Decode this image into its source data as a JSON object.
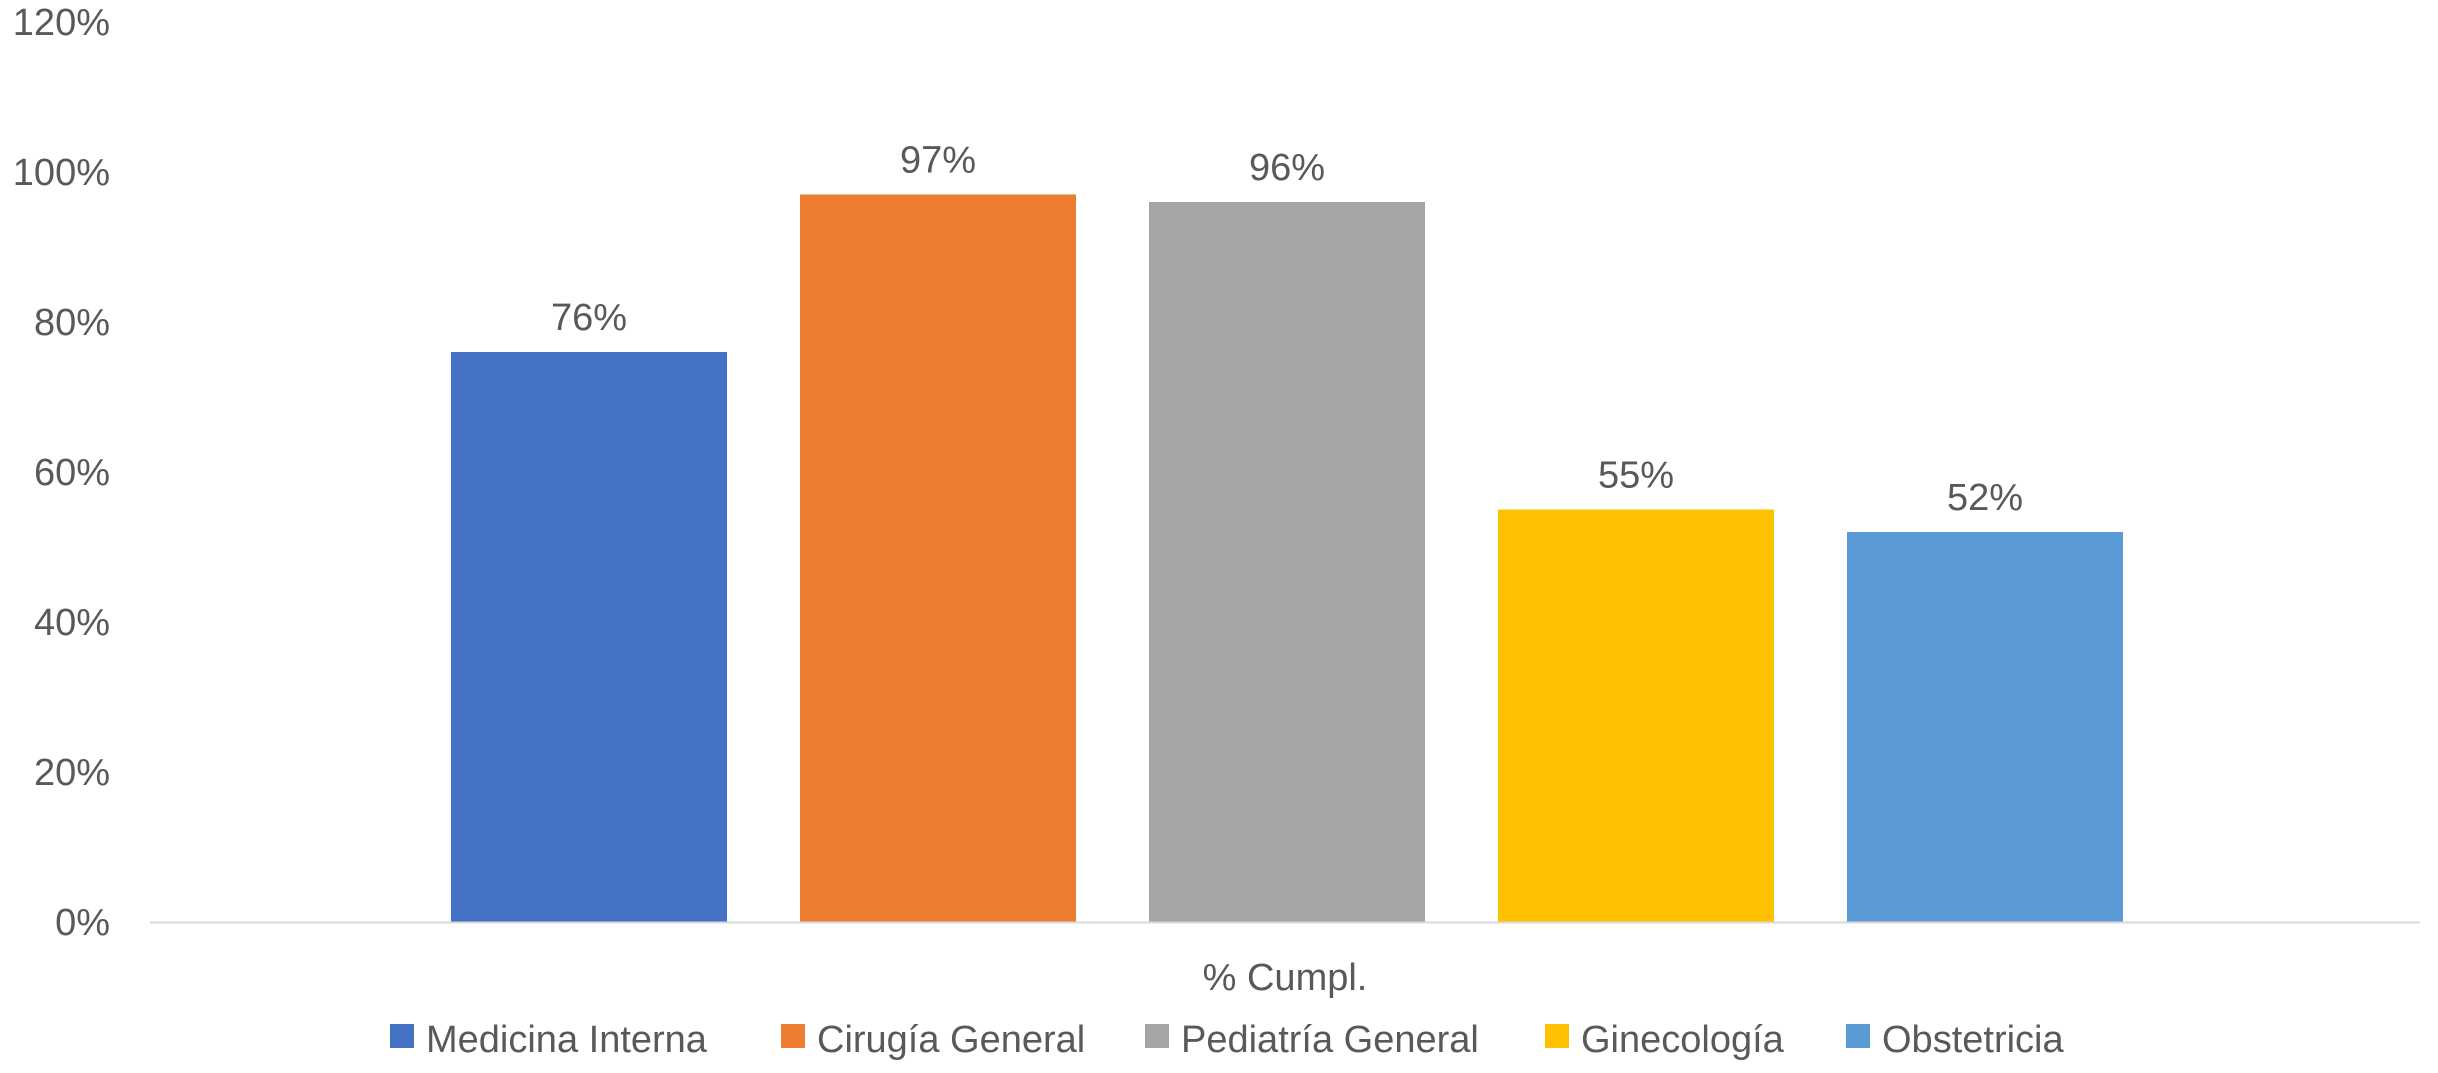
{
  "chart_data": {
    "type": "bar",
    "categories": [
      "% Cumpl."
    ],
    "series": [
      {
        "name": "Medicina Interna",
        "values": [
          76
        ],
        "label": "76%",
        "color": "#4472C4"
      },
      {
        "name": "Cirugía General",
        "values": [
          97
        ],
        "label": "97%",
        "color": "#ED7D31"
      },
      {
        "name": "Pediatría General",
        "values": [
          96
        ],
        "label": "96%",
        "color": "#A5A5A5"
      },
      {
        "name": "Ginecología",
        "values": [
          55
        ],
        "label": "55%",
        "color": "#FFC000"
      },
      {
        "name": "Obstetricia",
        "values": [
          52
        ],
        "label": "52%",
        "color": "#5B9BD5"
      }
    ],
    "y_ticks": [
      {
        "value": 0,
        "label": "0%"
      },
      {
        "value": 20,
        "label": "20%"
      },
      {
        "value": 40,
        "label": "40%"
      },
      {
        "value": 60,
        "label": "60%"
      },
      {
        "value": 80,
        "label": "80%"
      },
      {
        "value": 100,
        "label": "100%"
      },
      {
        "value": 120,
        "label": "120%"
      }
    ],
    "ylim": [
      0,
      120
    ],
    "grid": false,
    "legend_position": "bottom",
    "axis_color": "#D9D9D9",
    "text_color": "#595959"
  }
}
